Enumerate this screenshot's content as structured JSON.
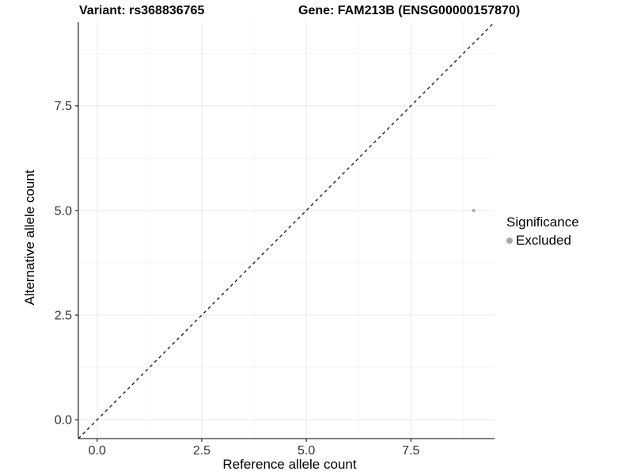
{
  "header": {
    "title_left": "Variant: rs368836765",
    "title_right": "Gene: FAM213B (ENSG00000157870)"
  },
  "chart_data": {
    "type": "scatter",
    "xlabel": "Reference allele count",
    "ylabel": "Alternative allele count",
    "xlim": [
      -0.45,
      9.5
    ],
    "ylim": [
      -0.45,
      9.5
    ],
    "x_ticks": [
      0,
      2.5,
      5,
      7.5
    ],
    "y_ticks": [
      0,
      2.5,
      5,
      7.5
    ],
    "x_tick_labels": [
      "0.0",
      "2.5",
      "5.0",
      "7.5"
    ],
    "y_tick_labels": [
      "0.0",
      "2.5",
      "5.0",
      "7.5"
    ],
    "x_minor_ticks": [
      1.25,
      3.75,
      6.25,
      8.75
    ],
    "y_minor_ticks": [
      1.25,
      3.75,
      6.25,
      8.75
    ],
    "grid": true,
    "legend_position": "right",
    "identity_line": {
      "slope": 1,
      "intercept": 0,
      "style": "dashed",
      "color": "#111111"
    },
    "series": [
      {
        "name": "Excluded",
        "color": "#b3b3b3",
        "points": [
          {
            "x": 9,
            "y": 5
          }
        ]
      }
    ]
  },
  "legend": {
    "title": "Significance",
    "items": [
      {
        "label": "Excluded",
        "color": "#a9a9a9"
      }
    ]
  },
  "colors": {
    "background": "#ffffff",
    "grid_major": "#e9e9e9",
    "grid_minor": "#f4f4f4",
    "axis_line": "#333333",
    "tick_text": "#333333",
    "title_text": "#000000"
  }
}
